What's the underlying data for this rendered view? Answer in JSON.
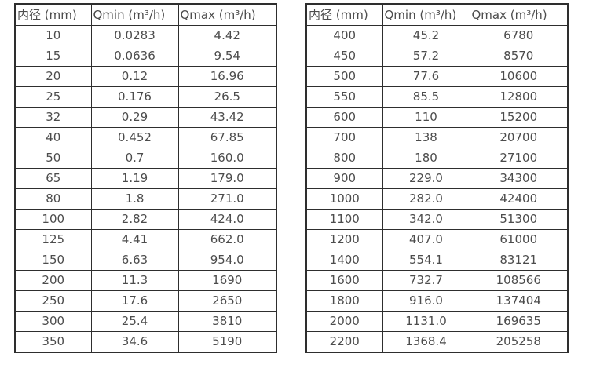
{
  "accent_colors": {
    "border": "#2e2e2e",
    "text": "#4c4c4c",
    "background": "#ffffff"
  },
  "chart_data": [
    {
      "type": "table",
      "title": "",
      "headers": [
        "内径 (mm)",
        "Qmin (m³/h)",
        "Qmax (m³/h)"
      ],
      "rows": [
        [
          "10",
          "0.0283",
          "4.42"
        ],
        [
          "15",
          "0.0636",
          "9.54"
        ],
        [
          "20",
          "0.12",
          "16.96"
        ],
        [
          "25",
          "0.176",
          "26.5"
        ],
        [
          "32",
          "0.29",
          "43.42"
        ],
        [
          "40",
          "0.452",
          "67.85"
        ],
        [
          "50",
          "0.7",
          "160.0"
        ],
        [
          "65",
          "1.19",
          "179.0"
        ],
        [
          "80",
          "1.8",
          "271.0"
        ],
        [
          "100",
          "2.82",
          "424.0"
        ],
        [
          "125",
          "4.41",
          "662.0"
        ],
        [
          "150",
          "6.63",
          "954.0"
        ],
        [
          "200",
          "11.3",
          "1690"
        ],
        [
          "250",
          "17.6",
          "2650"
        ],
        [
          "300",
          "25.4",
          "3810"
        ],
        [
          "350",
          "34.6",
          "5190"
        ]
      ]
    },
    {
      "type": "table",
      "title": "",
      "headers": [
        "内径 (mm)",
        "Qmin (m³/h)",
        "Qmax (m³/h)"
      ],
      "rows": [
        [
          "400",
          "45.2",
          "6780"
        ],
        [
          "450",
          "57.2",
          "8570"
        ],
        [
          "500",
          "77.6",
          "10600"
        ],
        [
          "550",
          "85.5",
          "12800"
        ],
        [
          "600",
          "110",
          "15200"
        ],
        [
          "700",
          "138",
          "20700"
        ],
        [
          "800",
          "180",
          "27100"
        ],
        [
          "900",
          "229.0",
          "34300"
        ],
        [
          "1000",
          "282.0",
          "42400"
        ],
        [
          "1100",
          "342.0",
          "51300"
        ],
        [
          "1200",
          "407.0",
          "61000"
        ],
        [
          "1400",
          "554.1",
          "83121"
        ],
        [
          "1600",
          "732.7",
          "108566"
        ],
        [
          "1800",
          "916.0",
          "137404"
        ],
        [
          "2000",
          "1131.0",
          "169635"
        ],
        [
          "2200",
          "1368.4",
          "205258"
        ]
      ]
    }
  ]
}
